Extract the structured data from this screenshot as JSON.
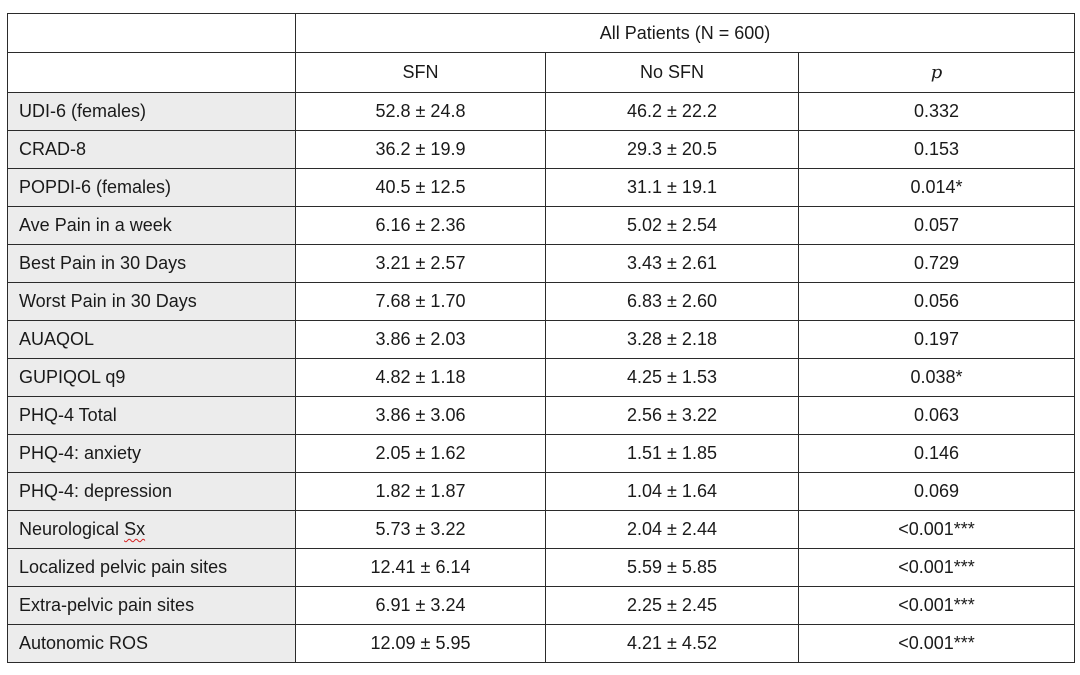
{
  "table": {
    "group_header": "All Patients (N = 600)",
    "columns": [
      "SFN",
      "No SFN",
      "p"
    ],
    "rows": [
      {
        "label": "UDI-6 (females)",
        "sfn": "52.8 ± 24.8",
        "no_sfn": "46.2 ± 22.2",
        "p": "0.332"
      },
      {
        "label": "CRAD-8",
        "sfn": "36.2 ± 19.9",
        "no_sfn": "29.3 ± 20.5",
        "p": "0.153"
      },
      {
        "label": "POPDI-6 (females)",
        "sfn": "40.5 ± 12.5",
        "no_sfn": "31.1 ± 19.1",
        "p": "0.014*"
      },
      {
        "label": "Ave Pain in a week",
        "sfn": "6.16 ± 2.36",
        "no_sfn": "5.02 ± 2.54",
        "p": "0.057"
      },
      {
        "label": "Best Pain in 30 Days",
        "sfn": "3.21 ± 2.57",
        "no_sfn": "3.43 ± 2.61",
        "p": "0.729"
      },
      {
        "label": "Worst Pain in 30 Days",
        "sfn": "7.68 ± 1.70",
        "no_sfn": "6.83 ± 2.60",
        "p": "0.056"
      },
      {
        "label": "AUAQOL",
        "sfn": "3.86 ± 2.03",
        "no_sfn": "3.28 ± 2.18",
        "p": "0.197"
      },
      {
        "label": "GUPIQOL q9",
        "sfn": "4.82 ± 1.18",
        "no_sfn": "4.25 ± 1.53",
        "p": "0.038*"
      },
      {
        "label": "PHQ-4 Total",
        "sfn": "3.86 ± 3.06",
        "no_sfn": "2.56 ± 3.22",
        "p": "0.063"
      },
      {
        "label": "PHQ-4: anxiety",
        "sfn": "2.05 ± 1.62",
        "no_sfn": "1.51 ± 1.85",
        "p": "0.146"
      },
      {
        "label": "PHQ-4: depression",
        "sfn": "1.82 ± 1.87",
        "no_sfn": "1.04 ± 1.64",
        "p": "0.069"
      },
      {
        "label_prefix": "Neurological ",
        "label_squiggle": "Sx",
        "sfn": "5.73 ± 3.22",
        "no_sfn": "2.04 ± 2.44",
        "p": "<0.001***"
      },
      {
        "label": "Localized pelvic pain sites",
        "sfn": "12.41 ± 6.14",
        "no_sfn": "5.59 ± 5.85",
        "p": "<0.001***"
      },
      {
        "label": "Extra-pelvic pain sites",
        "sfn": "6.91 ± 3.24",
        "no_sfn": "2.25 ± 2.45",
        "p": "<0.001***"
      },
      {
        "label": "Autonomic ROS",
        "sfn": "12.09 ± 5.95",
        "no_sfn": "4.21 ± 4.52",
        "p": "<0.001***"
      }
    ]
  }
}
